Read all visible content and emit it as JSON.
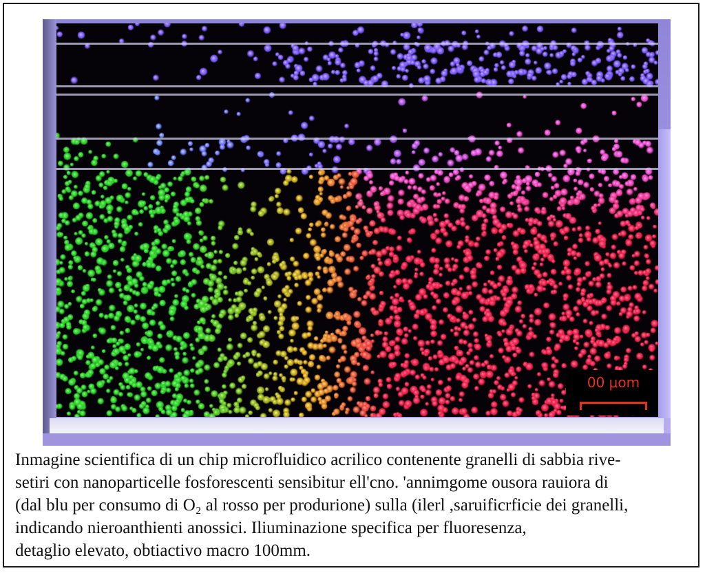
{
  "figure": {
    "image": {
      "description": "Fluorescence macro photograph of an acrylic microfluidic chip with horizontal channels filled with glowing sand grains",
      "colors": {
        "left_region": "#2fd02a",
        "mid_region": "#e0a020",
        "right_region": "#f0224a",
        "top_region": "#7a5cff",
        "upper_right_pink": "#f04fd0",
        "background": "#050308",
        "chip_frame": "#a59be6"
      },
      "scale_bar": {
        "label": "00 μom",
        "color": "#e8321e"
      }
    },
    "caption": {
      "lines": [
        "Inmagine scientifica di un chip microfluidico acrilico contenente granelli di sabbia rive-",
        "setiri con nanoparticelle fosforescenti sensibitur ell'cno. 'annimgome ousora rauiora di",
        "(dal blu per consumo di O₂ al rosso per produrione) sulla  (ilerl ,saruificrficie dei granelli,",
        "indicando nieroanthienti anossici. Iliuminazione specifica per fluoresenza,",
        "detaglio elevato, obtiactivo macro 100mm."
      ]
    }
  }
}
